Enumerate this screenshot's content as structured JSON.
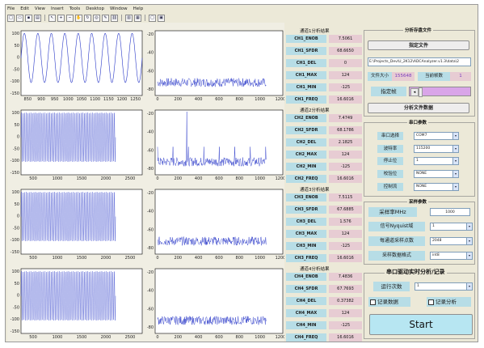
{
  "menu": [
    "File",
    "Edit",
    "View",
    "Insert",
    "Tools",
    "Desktop",
    "Window",
    "Help"
  ],
  "toolbar_icons": [
    "new-file-icon",
    "open-folder-icon",
    "save-icon",
    "print-icon",
    "pointer-icon",
    "zoom-in-icon",
    "zoom-out-icon",
    "pan-icon",
    "rotate-icon",
    "data-cursor-icon",
    "brush-icon",
    "link-icon",
    "colorbar-icon",
    "legend-icon",
    "hide-plot-icon",
    "show-plot-icon"
  ],
  "channels": [
    {
      "title": "通道1分析结果",
      "rows": [
        {
          "label": "CH1_ENOB",
          "value": "7.5061"
        },
        {
          "label": "CH1_SFDR",
          "value": "68.6650"
        },
        {
          "label": "CH1_DEL",
          "value": "0"
        },
        {
          "label": "CH1_MAX",
          "value": "124"
        },
        {
          "label": "CH1_MIN",
          "value": "-125"
        },
        {
          "label": "CH1_FREQ",
          "value": "16.6016"
        }
      ],
      "time_xticks": [
        "850",
        "900",
        "950",
        "1000",
        "1050",
        "1100",
        "1150",
        "1200",
        "1250"
      ],
      "yticks": [
        "100",
        "50",
        "0",
        "-50",
        "-100",
        "-150"
      ],
      "fft_xticks": [
        "0",
        "200",
        "400",
        "600",
        "800",
        "1000",
        "1200"
      ],
      "fft_yticks": [
        "-20",
        "-40",
        "-60",
        "-80"
      ]
    },
    {
      "title": "通道2分析结果",
      "rows": [
        {
          "label": "CH2_ENOB",
          "value": "7.4749"
        },
        {
          "label": "CH2_SFDR",
          "value": "68.1786"
        },
        {
          "label": "CH2_DEL",
          "value": "2.1825"
        },
        {
          "label": "CH2_MAX",
          "value": "124"
        },
        {
          "label": "CH2_MIN",
          "value": "-125"
        },
        {
          "label": "CH2_FREQ",
          "value": "16.6016"
        }
      ],
      "time_xticks": [
        "500",
        "1000",
        "1500",
        "2000",
        "2500"
      ],
      "yticks": [
        "100",
        "50",
        "0",
        "-50",
        "-100",
        "-150"
      ],
      "fft_xticks": [
        "0",
        "200",
        "400",
        "600",
        "800",
        "1000",
        "1200"
      ],
      "fft_yticks": [
        "-20",
        "-40",
        "-60",
        "-80"
      ]
    },
    {
      "title": "通道3分析结果",
      "rows": [
        {
          "label": "CH3_ENOB",
          "value": "7.5115"
        },
        {
          "label": "CH3_SFDR",
          "value": "67.6885"
        },
        {
          "label": "CH3_DEL",
          "value": "1.576"
        },
        {
          "label": "CH3_MAX",
          "value": "124"
        },
        {
          "label": "CH3_MIN",
          "value": "-125"
        },
        {
          "label": "CH3_FREQ",
          "value": "16.6016"
        }
      ],
      "time_xticks": [
        "500",
        "1000",
        "1500",
        "2000",
        "2500"
      ],
      "yticks": [
        "100",
        "50",
        "0",
        "-50",
        "-100",
        "-150"
      ],
      "fft_xticks": [
        "0",
        "200",
        "400",
        "600",
        "800",
        "1000",
        "1200"
      ],
      "fft_yticks": [
        "-20",
        "-40",
        "-60",
        "-80"
      ]
    },
    {
      "title": "通道4分析结果",
      "rows": [
        {
          "label": "CH4_ENOB",
          "value": "7.4836"
        },
        {
          "label": "CH4_SFDR",
          "value": "67.7693"
        },
        {
          "label": "CH4_DEL",
          "value": "0.37382"
        },
        {
          "label": "CH4_MAX",
          "value": "124"
        },
        {
          "label": "CH4_MIN",
          "value": "-125"
        },
        {
          "label": "CH4_FREQ",
          "value": "16.6016"
        }
      ],
      "time_xticks": [
        "500",
        "1000",
        "1500",
        "2000",
        "2500"
      ],
      "yticks": [
        "100",
        "50",
        "0",
        "-50",
        "-100",
        "-150"
      ],
      "fft_xticks": [
        "0",
        "200",
        "400",
        "600",
        "800",
        "1000",
        "1200"
      ],
      "fft_yticks": [
        "-20",
        "-40",
        "-60",
        "-80"
      ]
    }
  ],
  "file_panel": {
    "title": "分析存盘文件",
    "choose_file_btn": "指定文件",
    "file_path": "E:\\Projects_Dev\\U_2K12\\ADCAnalyzer.v1.3\\data\\2",
    "file_size_label": "文件大小",
    "file_size_value": "155648",
    "current_frames_label": "当前帧数",
    "current_frames_value": "1",
    "specify_frame_label": "指定帧",
    "analyze_btn": "分析文件数据"
  },
  "serial_panel": {
    "title": "串口参数",
    "port_label": "串口选择",
    "port_value": "COM7",
    "baud_label": "波特率",
    "baud_value": "115200",
    "stopbits_label": "停止位",
    "stopbits_value": "1",
    "parity_label": "校验位",
    "parity_value": "NONE",
    "flow_label": "控制流",
    "flow_value": "NONE"
  },
  "sampling_panel": {
    "title": "采样参数",
    "rate_label": "采样率MHz",
    "rate_value": "1000",
    "nyquist_label": "信号Nyquist域",
    "nyquist_value": "1",
    "points_label": "每通道采样点数",
    "points_value": "2048",
    "format_label": "采样数据格式",
    "format_value": "int8"
  },
  "realtime_panel": {
    "title": "串口驱动实时分析/记录",
    "run_count_label": "运行次数",
    "run_count_value": "1",
    "record_data_label": "记录数据",
    "record_analysis_label": "记录分析",
    "start_btn": "Start"
  }
}
